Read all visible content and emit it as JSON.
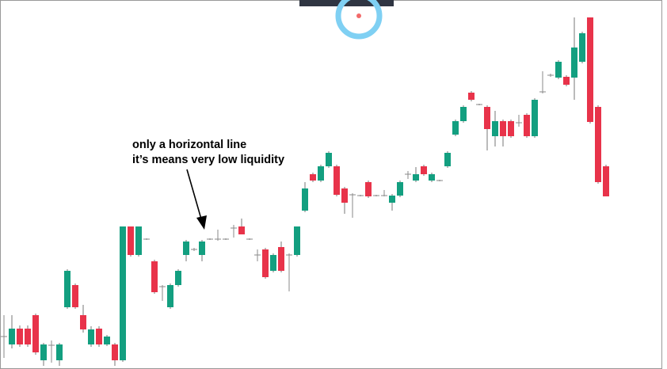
{
  "chart_data": {
    "type": "candlestick",
    "annotations": [
      "only a horizontal line",
      "it’s means very low liquidity"
    ],
    "up_color": "#139f80",
    "down_color": "#e8334a",
    "doji_color": "#8a8a8a",
    "ylim": [
      0,
      466
    ],
    "series": [
      {
        "name": "open",
        "values": [
          41,
          31,
          51,
          51,
          68,
          11,
          30,
          11,
          78,
          106,
          68,
          31,
          51,
          31,
          31,
          11,
          180,
          144,
          164,
          136,
          104,
          78,
          106,
          144,
          151,
          144,
          164,
          164,
          164,
          178,
          180,
          164,
          144,
          151,
          124,
          154,
          144,
          144,
          200,
          246,
          238,
          256,
          256,
          228,
          220,
          219,
          236,
          219,
          219,
          210,
          219,
          246,
          238,
          256,
          238,
          238,
          256,
          296,
          313,
          349,
          334,
          331,
          294,
          313,
          313,
          311,
          321,
          294,
          350,
          371,
          368,
          369,
          368,
          388,
          444,
          331,
          256
        ]
      },
      {
        "name": "high",
        "values": [
          68,
          68,
          55,
          55,
          70,
          33,
          36,
          33,
          126,
          108,
          81,
          54,
          54,
          43,
          33,
          180,
          180,
          180,
          165,
          138,
          106,
          108,
          126,
          163,
          153,
          163,
          165,
          176,
          165,
          182,
          190,
          165,
          151,
          153,
          146,
          161,
          146,
          180,
          236,
          248,
          258,
          275,
          258,
          230,
          222,
          220,
          238,
          220,
          226,
          221,
          238,
          250,
          255,
          258,
          248,
          239,
          275,
          315,
          333,
          351,
          335,
          333,
          326,
          315,
          315,
          321,
          323,
          342,
          376,
          373,
          390,
          371,
          444,
          426,
          444,
          333,
          258
        ]
      },
      {
        "name": "low",
        "values": [
          14,
          26,
          28,
          28,
          18,
          4,
          8,
          4,
          76,
          76,
          46,
          28,
          28,
          29,
          4,
          9,
          142,
          142,
          163,
          95,
          86,
          76,
          104,
          136,
          149,
          136,
          163,
          162,
          163,
          166,
          170,
          163,
          136,
          114,
          122,
          122,
          98,
          142,
          198,
          236,
          236,
          254,
          218,
          196,
          191,
          218,
          216,
          218,
          218,
          200,
          217,
          240,
          236,
          244,
          236,
          237,
          254,
          294,
          311,
          338,
          333,
          276,
          281,
          281,
          292,
          306,
          292,
          292,
          348,
          369,
          366,
          357,
          340,
          386,
          310,
          234,
          218
        ]
      },
      {
        "name": "close",
        "values": [
          41,
          51,
          31,
          31,
          21,
          31,
          30,
          31,
          124,
          78,
          50,
          50,
          31,
          41,
          11,
          180,
          144,
          180,
          164,
          97,
          104,
          106,
          124,
          161,
          151,
          161,
          164,
          164,
          164,
          178,
          170,
          164,
          144,
          116,
          144,
          124,
          144,
          180,
          228,
          238,
          256,
          273,
          220,
          210,
          220,
          219,
          218,
          219,
          219,
          219,
          236,
          246,
          246,
          246,
          246,
          238,
          273,
          313,
          331,
          340,
          334,
          303,
          313,
          294,
          294,
          311,
          294,
          340,
          350,
          371,
          388,
          359,
          406,
          424,
          312,
          236,
          218
        ]
      }
    ]
  }
}
